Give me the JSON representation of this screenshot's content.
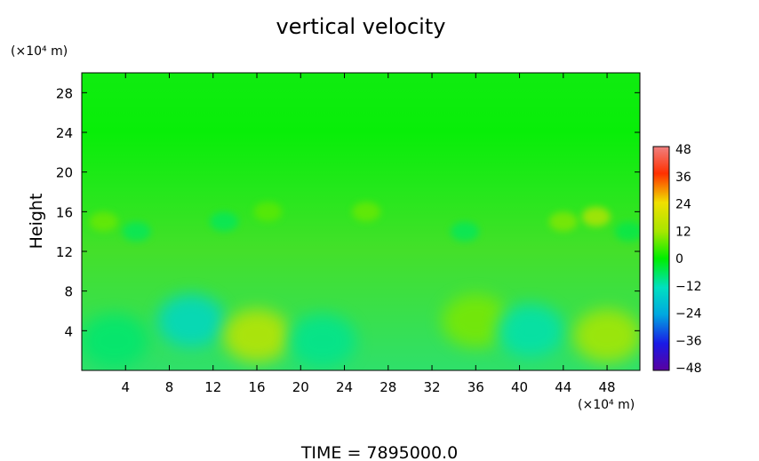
{
  "chart_data": {
    "type": "heatmap",
    "title": "vertical velocity",
    "ylabel": "Height",
    "x_unit": "(×10⁴ m)",
    "y_unit": "(×10⁴ m)",
    "footer": "TIME = 7895000.0",
    "xlim": [
      0,
      51
    ],
    "ylim": [
      0,
      30
    ],
    "x_ticks": [
      4,
      8,
      12,
      16,
      20,
      24,
      28,
      32,
      36,
      40,
      44,
      48
    ],
    "y_ticks": [
      4,
      8,
      12,
      16,
      20,
      24,
      28
    ],
    "colorbar": {
      "ticks": [
        48,
        36,
        24,
        12,
        0,
        -12,
        -24,
        -36,
        -48
      ],
      "min": -48,
      "max": 48
    },
    "low_level_features": [
      {
        "x": 3,
        "y": 3,
        "value": -7
      },
      {
        "x": 10,
        "y": 5,
        "value": -14
      },
      {
        "x": 16,
        "y": 3.5,
        "value": 16
      },
      {
        "x": 22,
        "y": 3,
        "value": -9
      },
      {
        "x": 36,
        "y": 5,
        "value": 9
      },
      {
        "x": 41,
        "y": 4,
        "value": -11
      },
      {
        "x": 48,
        "y": 3.5,
        "value": 13
      }
    ],
    "mid_level_features": [
      {
        "x": 2,
        "y": 15,
        "value": 8
      },
      {
        "x": 5,
        "y": 14,
        "value": -6
      },
      {
        "x": 13,
        "y": 15,
        "value": -6
      },
      {
        "x": 17,
        "y": 16,
        "value": 7
      },
      {
        "x": 26,
        "y": 16,
        "value": 8
      },
      {
        "x": 35,
        "y": 14,
        "value": -6
      },
      {
        "x": 44,
        "y": 15,
        "value": 10
      },
      {
        "x": 47,
        "y": 15.5,
        "value": 16
      },
      {
        "x": 50,
        "y": 14,
        "value": -5
      }
    ]
  }
}
